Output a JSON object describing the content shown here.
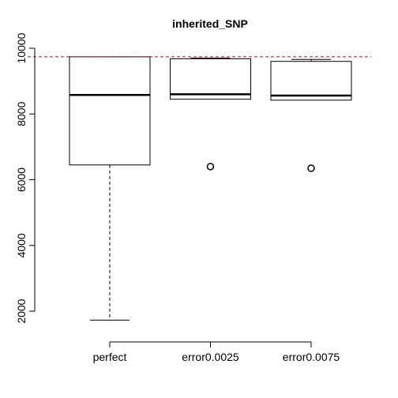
{
  "chart_data": {
    "type": "boxplot",
    "title": "inherited_SNP",
    "xlabel": "",
    "ylabel": "",
    "categories": [
      "perfect",
      "error0.0025",
      "error0.0075"
    ],
    "boxes": [
      {
        "name": "perfect",
        "min": 1730,
        "q1": 6450,
        "median": 8580,
        "q3": 9740,
        "max": 9740,
        "outliers": []
      },
      {
        "name": "error0.0025",
        "min": 8450,
        "q1": 8450,
        "median": 8600,
        "q3": 9680,
        "max": 9700,
        "outliers": [
          6400
        ]
      },
      {
        "name": "error0.0075",
        "min": 8420,
        "q1": 8420,
        "median": 8560,
        "q3": 9600,
        "max": 9660,
        "outliers": [
          6350
        ]
      }
    ],
    "reference_line": {
      "y": 9740,
      "color": "#cc0000",
      "style": "dashed"
    },
    "yticks": [
      2000,
      4000,
      6000,
      8000,
      10000
    ],
    "ylim": [
      1450,
      10050
    ]
  }
}
